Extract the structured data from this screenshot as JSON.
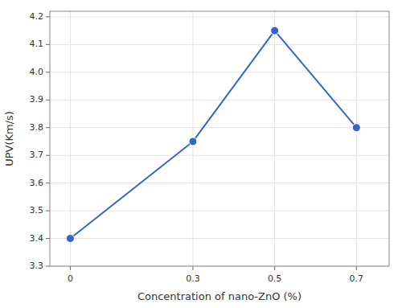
{
  "chart_data": {
    "type": "line",
    "xlabel": "Concentration of nano-ZnO (%)",
    "ylabel": "UPV(Km/s)",
    "x": [
      0,
      0.3,
      0.5,
      0.7
    ],
    "values": [
      3.4,
      3.75,
      4.15,
      3.8
    ],
    "xlim": [
      -0.05,
      0.78
    ],
    "ylim": [
      3.3,
      4.22
    ],
    "xticks": [
      0,
      0.3,
      0.5,
      0.7
    ],
    "yticks": [
      3.3,
      3.4,
      3.5,
      3.6,
      3.7,
      3.8,
      3.9,
      {
        "value": 4.0,
        "label": "4.0"
      },
      4.1,
      4.2
    ],
    "grid": true,
    "color": "#3366cc",
    "marker": "circle",
    "line_style": "solid"
  }
}
